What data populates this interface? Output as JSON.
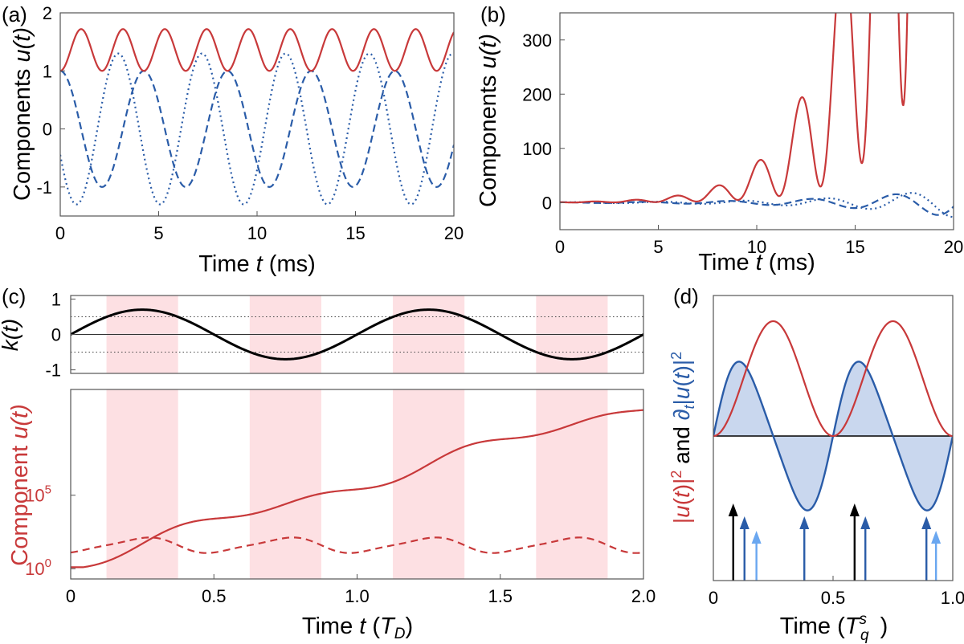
{
  "figure": {
    "panel_labels": [
      "(a)",
      "(b)",
      "(c)",
      "(d)"
    ]
  },
  "colors": {
    "red": "#c8393a",
    "blue": "#2a5ca8",
    "light_blue": "#6aa7f0",
    "black": "#000000",
    "shade_pink": "#fde0e3",
    "fill_blue": "#c9d7ee"
  },
  "chart_data": [
    {
      "panel": "(a)",
      "type": "line",
      "xlabel_prefix": "Time ",
      "xlabel_var": "t",
      "xlabel_suffix": " (ms)",
      "ylabel_prefix": "Components ",
      "ylabel_var": "u(t)",
      "xlim": [
        0,
        20
      ],
      "ylim": [
        -1.5,
        2
      ],
      "xticks": [
        0,
        5,
        10,
        15,
        20
      ],
      "yticks": [
        -1,
        0,
        1,
        2
      ],
      "series": [
        {
          "style": "solid",
          "color": "red",
          "description": "oscillates between 1.0 and 1.72, period ~2.1 ms"
        },
        {
          "style": "dashed",
          "color": "blue",
          "description": "starts at 1, oscillates between -1 and 1, period ~4.2 ms"
        },
        {
          "style": "dotted",
          "color": "blue",
          "description": "starts near 0, oscillates between -1.3 and 1.3, period ~4.2 ms"
        }
      ]
    },
    {
      "panel": "(b)",
      "type": "line",
      "xlabel_prefix": "Time ",
      "xlabel_var": "t",
      "xlabel_suffix": " (ms)",
      "ylabel_prefix": "Components ",
      "ylabel_var": "u(t)",
      "xlim": [
        0,
        20
      ],
      "ylim": [
        -50,
        350
      ],
      "xticks": [
        0,
        5,
        10,
        15,
        20
      ],
      "yticks": [
        0,
        100,
        200,
        300
      ],
      "series": [
        {
          "style": "solid",
          "color": "red",
          "description": "growing oscillation; peaks ~18 (t=8), 45 (t=10.1), 107 (t=12.2), 260 (t=14.3)"
        },
        {
          "style": "dashed",
          "color": "blue",
          "description": "small oscillation near 0, reaching ~±35 by t=20"
        },
        {
          "style": "dotted",
          "color": "blue",
          "description": "small oscillation near 0, reaching ~±35 by t=20"
        }
      ]
    },
    {
      "panel": "(c) top",
      "type": "line",
      "ylabel": "k(t)",
      "xlim": [
        0,
        2
      ],
      "ylim": [
        -1,
        1
      ],
      "yticks": [
        -1,
        0,
        1
      ],
      "shaded_intervals": [
        [
          0.125,
          0.375
        ],
        [
          0.625,
          0.875
        ],
        [
          1.125,
          1.375
        ],
        [
          1.625,
          1.875
        ]
      ],
      "reference_lines": [
        0.5,
        -0.5
      ],
      "series": [
        {
          "style": "solid",
          "color": "black",
          "description": "k(t) = 0.7 sin(2π t)"
        }
      ]
    },
    {
      "panel": "(c) bottom",
      "type": "line",
      "xlabel_prefix": "Time ",
      "xlabel_var": "t",
      "xlabel_suffix": " (",
      "xlabel_sub": "T_D",
      "xlabel_end": ")",
      "ylabel": "Component u(t)",
      "xlim": [
        0,
        2
      ],
      "xticks": [
        "0",
        "0.5",
        "1.0",
        "1.5",
        "2.0"
      ],
      "yscale": "log",
      "yticks": [
        "10^0",
        "10^5"
      ],
      "shaded_intervals": [
        [
          0.125,
          0.375
        ],
        [
          0.625,
          0.875
        ],
        [
          1.125,
          1.375
        ],
        [
          1.625,
          1.875
        ]
      ],
      "series": [
        {
          "style": "solid",
          "color": "red",
          "description": "exponential growth with plateaus, ~1 at t=0 to ~1e11 at t=2"
        },
        {
          "style": "dashed",
          "color": "red",
          "description": "bounded oscillation around ~10–100"
        }
      ]
    },
    {
      "panel": "(d)",
      "type": "line",
      "xlabel": "Time (T_q^s)",
      "xlim": [
        0,
        1
      ],
      "xticks": [
        "0",
        "0.5",
        "1.0"
      ],
      "ylabel_left": "|u(t)|² and",
      "ylabel_right": "∂t|u(t)|²",
      "series": [
        {
          "style": "solid",
          "color": "red",
          "description": "|u(t)|², peaks at 0.25 and 0.75, zeros at 0, 0.5, 1"
        },
        {
          "style": "solid",
          "color": "blue",
          "fill": true,
          "description": "∂t|u(t)|², positive before each peak, negative after"
        }
      ],
      "arrows": [
        {
          "x": 0.083,
          "color": "black",
          "height": "tall"
        },
        {
          "x": 0.13,
          "color": "blue",
          "height": "medium"
        },
        {
          "x": 0.18,
          "color": "light_blue",
          "height": "short"
        },
        {
          "x": 0.38,
          "color": "blue",
          "height": "medium"
        },
        {
          "x": 0.59,
          "color": "black",
          "height": "tall"
        },
        {
          "x": 0.635,
          "color": "blue",
          "height": "medium"
        },
        {
          "x": 0.89,
          "color": "blue",
          "height": "medium"
        },
        {
          "x": 0.93,
          "color": "light_blue",
          "height": "short"
        }
      ]
    }
  ]
}
